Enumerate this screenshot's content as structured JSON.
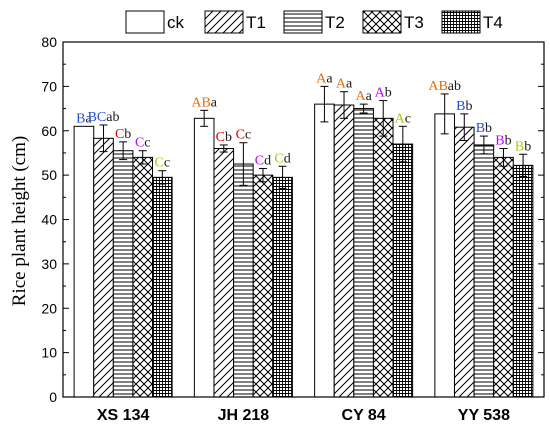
{
  "chart_data": {
    "type": "bar",
    "categories": [
      "XS 134",
      "JH 218",
      "CY 84",
      "YY 538"
    ],
    "ylabel": "Rice plant height (cm)",
    "xlabel": "",
    "ylim": [
      0,
      80
    ],
    "yticks": [
      0,
      10,
      20,
      30,
      40,
      50,
      60,
      70,
      80
    ],
    "legend_position": "top",
    "series": [
      {
        "name": "ck",
        "pattern": "blank",
        "values": [
          61.0,
          62.8,
          66.0,
          63.8
        ],
        "errors": [
          0,
          1.8,
          4.0,
          4.5
        ],
        "labels": [
          [
            "B",
            "a"
          ],
          [
            "AB",
            "a"
          ],
          [
            "A",
            "a"
          ],
          [
            "AB",
            "ab"
          ]
        ]
      },
      {
        "name": "T1",
        "pattern": "diagonal",
        "values": [
          58.3,
          56.0,
          65.8,
          60.8
        ],
        "errors": [
          3.0,
          0.8,
          3.0,
          3.0
        ],
        "labels": [
          [
            "BC",
            "ab"
          ],
          [
            "C",
            "b"
          ],
          [
            "A",
            "a"
          ],
          [
            "B",
            "b"
          ]
        ]
      },
      {
        "name": "T2",
        "pattern": "horizontal",
        "values": [
          55.5,
          52.5,
          65.0,
          56.8
        ],
        "errors": [
          2.0,
          4.8,
          1.0,
          2.0
        ],
        "labels": [
          [
            "C",
            "b"
          ],
          [
            "C",
            "c"
          ],
          [
            "A",
            "a"
          ],
          [
            "B",
            "b"
          ]
        ]
      },
      {
        "name": "T3",
        "pattern": "crosshatch",
        "values": [
          54.0,
          50.0,
          62.8,
          54.0
        ],
        "errors": [
          1.5,
          1.5,
          4.0,
          2.0
        ],
        "labels": [
          [
            "C",
            "c"
          ],
          [
            "C",
            "d"
          ],
          [
            "A",
            "b"
          ],
          [
            "B",
            "b"
          ]
        ]
      },
      {
        "name": "T4",
        "pattern": "grid",
        "values": [
          49.5,
          49.5,
          57.0,
          52.2
        ],
        "errors": [
          1.5,
          2.5,
          4.0,
          2.5
        ],
        "labels": [
          [
            "C",
            "c"
          ],
          [
            "C",
            "d"
          ],
          [
            "A",
            "c"
          ],
          [
            "B",
            "b"
          ]
        ]
      }
    ],
    "label_colors": {
      "A": "#e46c0a",
      "AB": "#e46c0a",
      "B": "#1f4fd8",
      "BC": "#1f4fd8",
      "C": "#e00000"
    },
    "series_label_colors": {
      "T3": "#c000ff",
      "T4": "#aacc00"
    }
  }
}
